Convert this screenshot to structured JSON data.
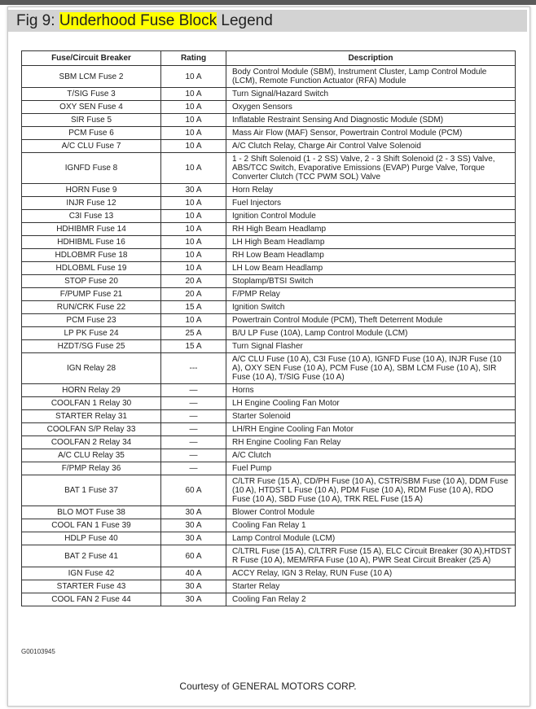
{
  "title": {
    "prefix": "Fig 9: ",
    "highlight": "Underhood Fuse Block",
    "suffix": " Legend",
    "highlight_color": "#ffff00"
  },
  "table": {
    "headers": [
      "Fuse/Circuit Breaker",
      "Rating",
      "Description"
    ],
    "rows": [
      {
        "fuse": "SBM LCM Fuse 2",
        "rating": "10 A",
        "desc": "Body Control Module (SBM), Instrument Cluster, Lamp Control Module (LCM), Remote Function Actuator (RFA) Module"
      },
      {
        "fuse": "T/SIG Fuse 3",
        "rating": "10 A",
        "desc": "Turn Signal/Hazard Switch"
      },
      {
        "fuse": "OXY SEN Fuse 4",
        "rating": "10 A",
        "desc": "Oxygen Sensors"
      },
      {
        "fuse": "SIR Fuse 5",
        "rating": "10 A",
        "desc": "Inflatable Restraint Sensing And Diagnostic Module (SDM)"
      },
      {
        "fuse": "PCM Fuse 6",
        "rating": "10 A",
        "desc": "Mass Air Flow (MAF) Sensor, Powertrain Control Module (PCM)"
      },
      {
        "fuse": "A/C CLU Fuse 7",
        "rating": "10 A",
        "desc": "A/C Clutch Relay, Charge Air Control Valve Solenoid"
      },
      {
        "fuse": "IGNFD Fuse 8",
        "rating": "10 A",
        "desc": "1 - 2 Shift Solenoid (1 - 2 SS) Valve, 2 - 3 Shift Solenoid (2 - 3 SS) Valve, ABS/TCC Switch, Evaporative Emissions (EVAP) Purge Valve, Torque Converter Clutch (TCC PWM SOL) Valve"
      },
      {
        "fuse": "HORN Fuse 9",
        "rating": "30 A",
        "desc": "Horn Relay"
      },
      {
        "fuse": "INJR Fuse 12",
        "rating": "10 A",
        "desc": "Fuel Injectors"
      },
      {
        "fuse": "C3I Fuse 13",
        "rating": "10 A",
        "desc": "Ignition Control Module"
      },
      {
        "fuse": "HDHIBMR Fuse 14",
        "rating": "10 A",
        "desc": "RH High Beam Headlamp"
      },
      {
        "fuse": "HDHIBML Fuse 16",
        "rating": "10 A",
        "desc": "LH High Beam Headlamp"
      },
      {
        "fuse": "HDLOBMR Fuse 18",
        "rating": "10 A",
        "desc": "RH Low Beam Headlamp"
      },
      {
        "fuse": "HDLOBML Fuse 19",
        "rating": "10 A",
        "desc": "LH Low Beam Headlamp"
      },
      {
        "fuse": "STOP Fuse 20",
        "rating": "20 A",
        "desc": "Stoplamp/BTSI Switch"
      },
      {
        "fuse": "F/PUMP Fuse 21",
        "rating": "20 A",
        "desc": "F/PMP Relay"
      },
      {
        "fuse": "RUN/CRK Fuse 22",
        "rating": "15 A",
        "desc": "Ignition Switch"
      },
      {
        "fuse": "PCM Fuse 23",
        "rating": "10 A",
        "desc": "Powertrain Control Module (PCM), Theft Deterrent Module"
      },
      {
        "fuse": "LP PK Fuse 24",
        "rating": "25 A",
        "desc": "B/U LP Fuse (10A), Lamp Control Module (LCM)"
      },
      {
        "fuse": "HZDT/SG Fuse 25",
        "rating": "15 A",
        "desc": "Turn Signal Flasher"
      },
      {
        "fuse": "IGN Relay 28",
        "rating": "---",
        "desc": "A/C CLU Fuse (10 A), C3I Fuse (10 A), IGNFD Fuse (10 A), INJR Fuse (10 A), OXY SEN Fuse (10 A), PCM Fuse (10 A), SBM LCM Fuse (10 A), SIR Fuse (10 A), T/SIG Fuse (10 A)"
      },
      {
        "fuse": "HORN Relay 29",
        "rating": "—",
        "desc": "Horns"
      },
      {
        "fuse": "COOLFAN 1 Relay 30",
        "rating": "—",
        "desc": "LH Engine Cooling Fan Motor"
      },
      {
        "fuse": "STARTER Relay 31",
        "rating": "—",
        "desc": "Starter Solenoid"
      },
      {
        "fuse": "COOLFAN S/P Relay 33",
        "rating": "—",
        "desc": "LH/RH Engine Cooling Fan Motor"
      },
      {
        "fuse": "COOLFAN 2 Relay 34",
        "rating": "—",
        "desc": "RH Engine Cooling Fan Relay"
      },
      {
        "fuse": "A/C CLU Relay 35",
        "rating": "—",
        "desc": "A/C Clutch"
      },
      {
        "fuse": "F/PMP Relay 36",
        "rating": "—",
        "desc": "Fuel Pump"
      },
      {
        "fuse": "BAT 1 Fuse 37",
        "rating": "60 A",
        "desc": "C/LTR Fuse (15 A), CD/PH Fuse (10 A), CSTR/SBM Fuse (10 A), DDM Fuse (10 A), HTDST L Fuse (10 A), PDM Fuse (10 A), RDM Fuse (10 A), RDO Fuse (10 A), SBD Fuse (10 A), TRK REL Fuse (15 A)"
      },
      {
        "fuse": "BLO MOT Fuse 38",
        "rating": "30 A",
        "desc": "Blower Control Module"
      },
      {
        "fuse": "COOL FAN 1 Fuse 39",
        "rating": "30 A",
        "desc": "Cooling Fan Relay 1"
      },
      {
        "fuse": "HDLP Fuse 40",
        "rating": "30 A",
        "desc": "Lamp Control Module (LCM)"
      },
      {
        "fuse": "BAT 2 Fuse 41",
        "rating": "60 A",
        "desc": "C/LTRL Fuse (15 A), C/LTRR Fuse (15 A), ELC Circuit Breaker (30 A),HTDST R Fuse (10 A), MEM/RFA Fuse (10 A), PWR Seat Circuit Breaker (25 A)"
      },
      {
        "fuse": "IGN Fuse 42",
        "rating": "40 A",
        "desc": "ACCY Relay, IGN 3 Relay, RUN Fuse (10 A)"
      },
      {
        "fuse": "STARTER Fuse 43",
        "rating": "30 A",
        "desc": "Starter Relay"
      },
      {
        "fuse": "COOL FAN 2 Fuse 44",
        "rating": "30 A",
        "desc": "Cooling Fan Relay 2"
      }
    ]
  },
  "figure_id": "G00103945",
  "courtesy": "Courtesy of GENERAL MOTORS CORP."
}
